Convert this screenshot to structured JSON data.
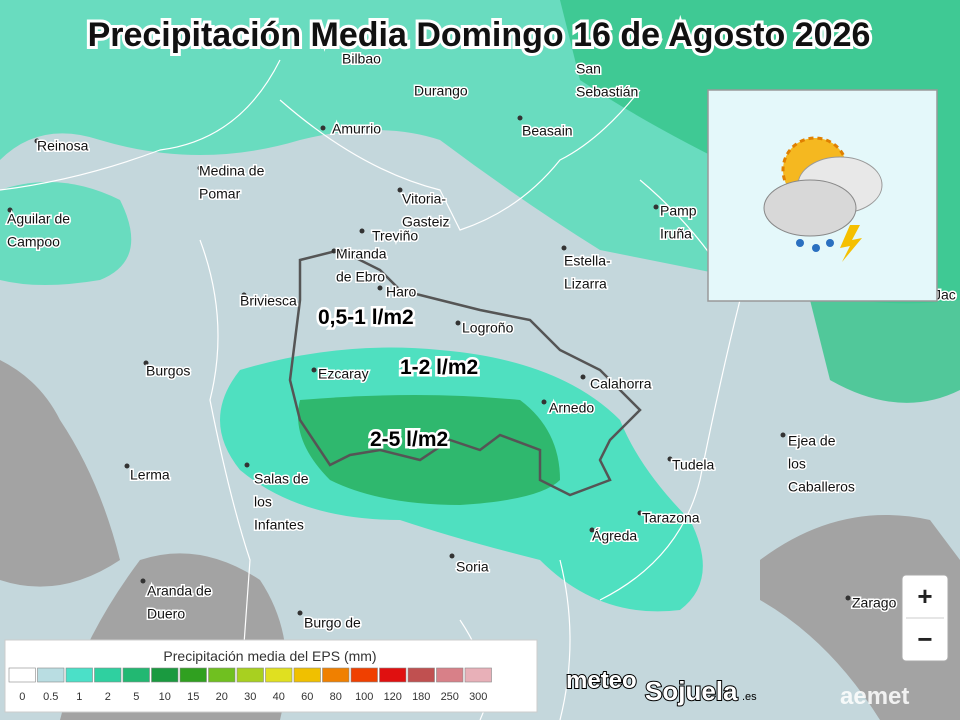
{
  "header": {
    "title": "Precipitación Media Domingo 16 de Agosto 2026"
  },
  "places": [
    {
      "lines": [
        "Bilbao"
      ]
    },
    {
      "lines": [
        "San",
        "Sebastián"
      ]
    },
    {
      "lines": [
        "Durango"
      ]
    },
    {
      "lines": [
        "Amurrio"
      ]
    },
    {
      "lines": [
        "Beasain"
      ]
    },
    {
      "lines": [
        "Reinosa"
      ]
    },
    {
      "lines": [
        "Medina de",
        "Pomar"
      ]
    },
    {
      "lines": [
        "Vitoria-",
        "Gasteiz"
      ]
    },
    {
      "lines": [
        "Treviño"
      ]
    },
    {
      "lines": [
        "Aguilar de",
        "Campoo"
      ]
    },
    {
      "lines": [
        "Pamp",
        "Iruña"
      ]
    },
    {
      "lines": [
        "Estella-",
        "Lizarra"
      ]
    },
    {
      "lines": [
        "Miranda",
        "de Ebro"
      ]
    },
    {
      "lines": [
        "Haro"
      ]
    },
    {
      "lines": [
        "Briviesca"
      ]
    },
    {
      "lines": [
        "Logroño"
      ]
    },
    {
      "lines": [
        "Burgos"
      ]
    },
    {
      "lines": [
        "Ezcaray"
      ]
    },
    {
      "lines": [
        "Calahorra"
      ]
    },
    {
      "lines": [
        "Arnedo"
      ]
    },
    {
      "lines": [
        "Ejea de",
        "los",
        "Caballeros"
      ]
    },
    {
      "lines": [
        "Tudela"
      ]
    },
    {
      "lines": [
        "Lerma"
      ]
    },
    {
      "lines": [
        "Salas de",
        "los",
        "Infantes"
      ]
    },
    {
      "lines": [
        "Tarazona"
      ]
    },
    {
      "lines": [
        "Ágreda"
      ]
    },
    {
      "lines": [
        "Soria"
      ]
    },
    {
      "lines": [
        "Aranda de",
        "Duero"
      ]
    },
    {
      "lines": [
        "Burgo de"
      ]
    },
    {
      "lines": [
        "Zarago"
      ]
    },
    {
      "lines": [
        "Jac"
      ]
    }
  ],
  "zones": [
    "0,5-1 l/m2",
    "1-2 l/m2",
    "2-5 l/m2"
  ],
  "legend": {
    "title": "Precipitación media del EPS (mm)",
    "labels": [
      "0",
      "0.5",
      "1",
      "2",
      "5",
      "10",
      "15",
      "20",
      "30",
      "40",
      "60",
      "80",
      "100",
      "120",
      "180",
      "250",
      "300"
    ],
    "colors": [
      "#ffffff",
      "#b9dde2",
      "#4be0c8",
      "#2fd0a0",
      "#22b872",
      "#1a9a40",
      "#30a020",
      "#70c020",
      "#a8d020",
      "#e0e020",
      "#f0c000",
      "#f08000",
      "#f04000",
      "#e01010",
      "#c05050",
      "#d88088",
      "#e8b0b8"
    ]
  },
  "controls": {
    "zoom_in": "+",
    "zoom_out": "−"
  },
  "logos": {
    "brand_a": "meteo",
    "brand_b": "Sojuela",
    "brand_c": ".es",
    "agency": "aemet"
  }
}
